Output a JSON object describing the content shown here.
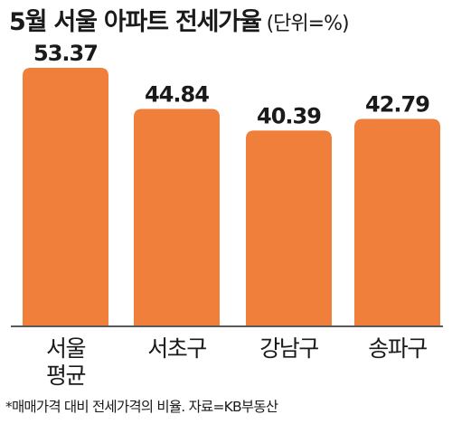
{
  "header": {
    "title": "5월 서울 아파트 전세가율",
    "unit": "(단위=%)"
  },
  "footnote": "*매매가격 대비 전세가격의 비율. 자료=KB부동산",
  "colors": {
    "bar": "#ef7f3a",
    "baseline": "#5a5a5a"
  },
  "chart_data": {
    "type": "bar",
    "title": "5월 서울 아파트 전세가율",
    "unit": "(단위=%)",
    "categories": [
      "서울 평균",
      "서초구",
      "강남구",
      "송파구"
    ],
    "category_lines": [
      [
        "서울",
        "평균"
      ],
      [
        "서초구"
      ],
      [
        "강남구"
      ],
      [
        "송파구"
      ]
    ],
    "values": [
      53.37,
      44.84,
      40.39,
      42.79
    ],
    "value_labels": [
      "53.37",
      "44.84",
      "40.39",
      "42.79"
    ],
    "xlabel": "",
    "ylabel": "",
    "ylim": [
      0,
      53.37
    ],
    "grid": false,
    "legend": "none"
  }
}
